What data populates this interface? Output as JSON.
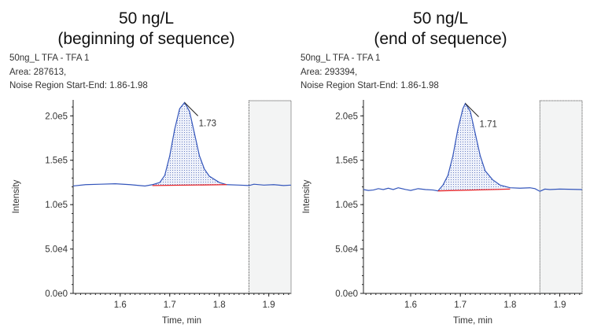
{
  "chart_data": [
    {
      "type": "line",
      "title": [
        "50 ng/L",
        "(beginning of sequence)"
      ],
      "info": [
        "50ng_L TFA - TFA 1",
        "Area: 287613,",
        "Noise Region Start-End: 1.86-1.98"
      ],
      "xlabel": "Time, min",
      "ylabel": "Intensity",
      "xlim": [
        1.505,
        1.945
      ],
      "ylim": [
        0,
        218000
      ],
      "xticks": [
        1.6,
        1.7,
        1.8,
        1.9
      ],
      "xtick_labels": [
        "1.6",
        "1.7",
        "1.8",
        "1.9"
      ],
      "yticks": [
        0,
        50000,
        100000,
        150000,
        200000
      ],
      "ytick_labels": [
        "0.0e0",
        "5.0e4",
        "1.0e5",
        "1.5e5",
        "2.0e5"
      ],
      "peak_label": "1.73",
      "peak": {
        "x": 1.73,
        "y": 215000
      },
      "noise_region_start": 1.86,
      "trace": [
        [
          1.505,
          121000
        ],
        [
          1.53,
          122500
        ],
        [
          1.56,
          123000
        ],
        [
          1.59,
          123500
        ],
        [
          1.62,
          122500
        ],
        [
          1.65,
          121000
        ],
        [
          1.665,
          122500
        ],
        [
          1.68,
          125000
        ],
        [
          1.69,
          133000
        ],
        [
          1.7,
          155000
        ],
        [
          1.71,
          185000
        ],
        [
          1.72,
          208000
        ],
        [
          1.73,
          215000
        ],
        [
          1.74,
          205000
        ],
        [
          1.75,
          180000
        ],
        [
          1.76,
          155000
        ],
        [
          1.77,
          140000
        ],
        [
          1.78,
          132000
        ],
        [
          1.8,
          125000
        ],
        [
          1.815,
          122500
        ],
        [
          1.84,
          122000
        ],
        [
          1.86,
          121500
        ],
        [
          1.87,
          123000
        ],
        [
          1.89,
          122000
        ],
        [
          1.91,
          122500
        ],
        [
          1.93,
          121500
        ],
        [
          1.945,
          122000
        ]
      ],
      "baseline": [
        [
          1.665,
          121500
        ],
        [
          1.815,
          122500
        ]
      ],
      "colors": {
        "trace": "#3355bb",
        "baseline": "#e8262a",
        "noise_fill": "#f3f4f4"
      }
    },
    {
      "type": "line",
      "title": [
        "50 ng/L",
        "(end of sequence)"
      ],
      "info": [
        "50ng_L TFA - TFA 1",
        "Area: 293394,",
        "Noise Region Start-End: 1.86-1.98"
      ],
      "xlabel": "Time, min",
      "ylabel": "Intensity",
      "xlim": [
        1.505,
        1.945
      ],
      "ylim": [
        0,
        218000
      ],
      "xticks": [
        1.6,
        1.7,
        1.8,
        1.9
      ],
      "xtick_labels": [
        "1.6",
        "1.7",
        "1.8",
        "1.9"
      ],
      "yticks": [
        0,
        50000,
        100000,
        150000,
        200000
      ],
      "ytick_labels": [
        "0.0e0",
        "5.0e4",
        "1.0e5",
        "1.5e5",
        "2.0e5"
      ],
      "peak_label": "1.71",
      "peak": {
        "x": 1.71,
        "y": 214000
      },
      "noise_region_start": 1.86,
      "trace": [
        [
          1.505,
          117000
        ],
        [
          1.515,
          116000
        ],
        [
          1.525,
          116500
        ],
        [
          1.535,
          118000
        ],
        [
          1.545,
          117000
        ],
        [
          1.555,
          118500
        ],
        [
          1.565,
          117000
        ],
        [
          1.575,
          119000
        ],
        [
          1.59,
          117000
        ],
        [
          1.6,
          116000
        ],
        [
          1.615,
          118000
        ],
        [
          1.63,
          117000
        ],
        [
          1.645,
          116500
        ],
        [
          1.655,
          115500
        ],
        [
          1.665,
          122000
        ],
        [
          1.675,
          133000
        ],
        [
          1.685,
          155000
        ],
        [
          1.695,
          185000
        ],
        [
          1.705,
          208000
        ],
        [
          1.71,
          214000
        ],
        [
          1.72,
          205000
        ],
        [
          1.73,
          180000
        ],
        [
          1.74,
          155000
        ],
        [
          1.75,
          138000
        ],
        [
          1.765,
          128000
        ],
        [
          1.78,
          122000
        ],
        [
          1.8,
          119000
        ],
        [
          1.82,
          118500
        ],
        [
          1.84,
          119000
        ],
        [
          1.85,
          118000
        ],
        [
          1.86,
          115000
        ],
        [
          1.87,
          117500
        ],
        [
          1.88,
          117000
        ],
        [
          1.9,
          117500
        ],
        [
          1.945,
          117000
        ]
      ],
      "baseline": [
        [
          1.655,
          115500
        ],
        [
          1.8,
          117500
        ]
      ],
      "colors": {
        "trace": "#3355bb",
        "baseline": "#e8262a",
        "noise_fill": "#f3f4f4"
      }
    }
  ]
}
